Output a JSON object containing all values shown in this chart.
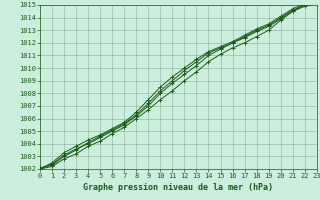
{
  "title": "Graphe pression niveau de la mer (hPa)",
  "bg_color": "#cceedd",
  "grid_color": "#99bbaa",
  "line_color": "#1a5c1a",
  "xlim": [
    0,
    23
  ],
  "ylim": [
    1002,
    1015
  ],
  "xticks": [
    0,
    1,
    2,
    3,
    4,
    5,
    6,
    7,
    8,
    9,
    10,
    11,
    12,
    13,
    14,
    15,
    16,
    17,
    18,
    19,
    20,
    21,
    22,
    23
  ],
  "yticks": [
    1002,
    1003,
    1004,
    1005,
    1006,
    1007,
    1008,
    1009,
    1010,
    1011,
    1012,
    1013,
    1014,
    1015
  ],
  "series": [
    [
      1002.0,
      1002.2,
      1002.8,
      1003.2,
      1003.8,
      1004.2,
      1004.8,
      1005.3,
      1006.0,
      1006.7,
      1007.5,
      1008.2,
      1009.0,
      1009.7,
      1010.5,
      1011.1,
      1011.6,
      1012.0,
      1012.5,
      1013.0,
      1013.8,
      1014.5,
      1015.0,
      1015.1
    ],
    [
      1002.1,
      1002.3,
      1003.0,
      1003.5,
      1004.1,
      1004.6,
      1005.1,
      1005.6,
      1006.3,
      1007.2,
      1008.2,
      1009.0,
      1009.8,
      1010.5,
      1011.2,
      1011.6,
      1012.0,
      1012.5,
      1013.0,
      1013.4,
      1014.0,
      1014.6,
      1015.0,
      1015.2
    ],
    [
      1002.0,
      1002.5,
      1003.3,
      1003.8,
      1004.3,
      1004.7,
      1005.2,
      1005.7,
      1006.5,
      1007.5,
      1008.5,
      1009.3,
      1010.0,
      1010.7,
      1011.3,
      1011.7,
      1012.1,
      1012.6,
      1013.1,
      1013.5,
      1014.1,
      1014.7,
      1015.1,
      1015.3
    ],
    [
      1002.0,
      1002.4,
      1003.1,
      1003.6,
      1004.0,
      1004.5,
      1005.0,
      1005.5,
      1006.2,
      1007.0,
      1008.0,
      1008.8,
      1009.5,
      1010.2,
      1011.0,
      1011.5,
      1012.0,
      1012.4,
      1012.9,
      1013.3,
      1013.9,
      1014.5,
      1014.9,
      1015.1
    ]
  ]
}
